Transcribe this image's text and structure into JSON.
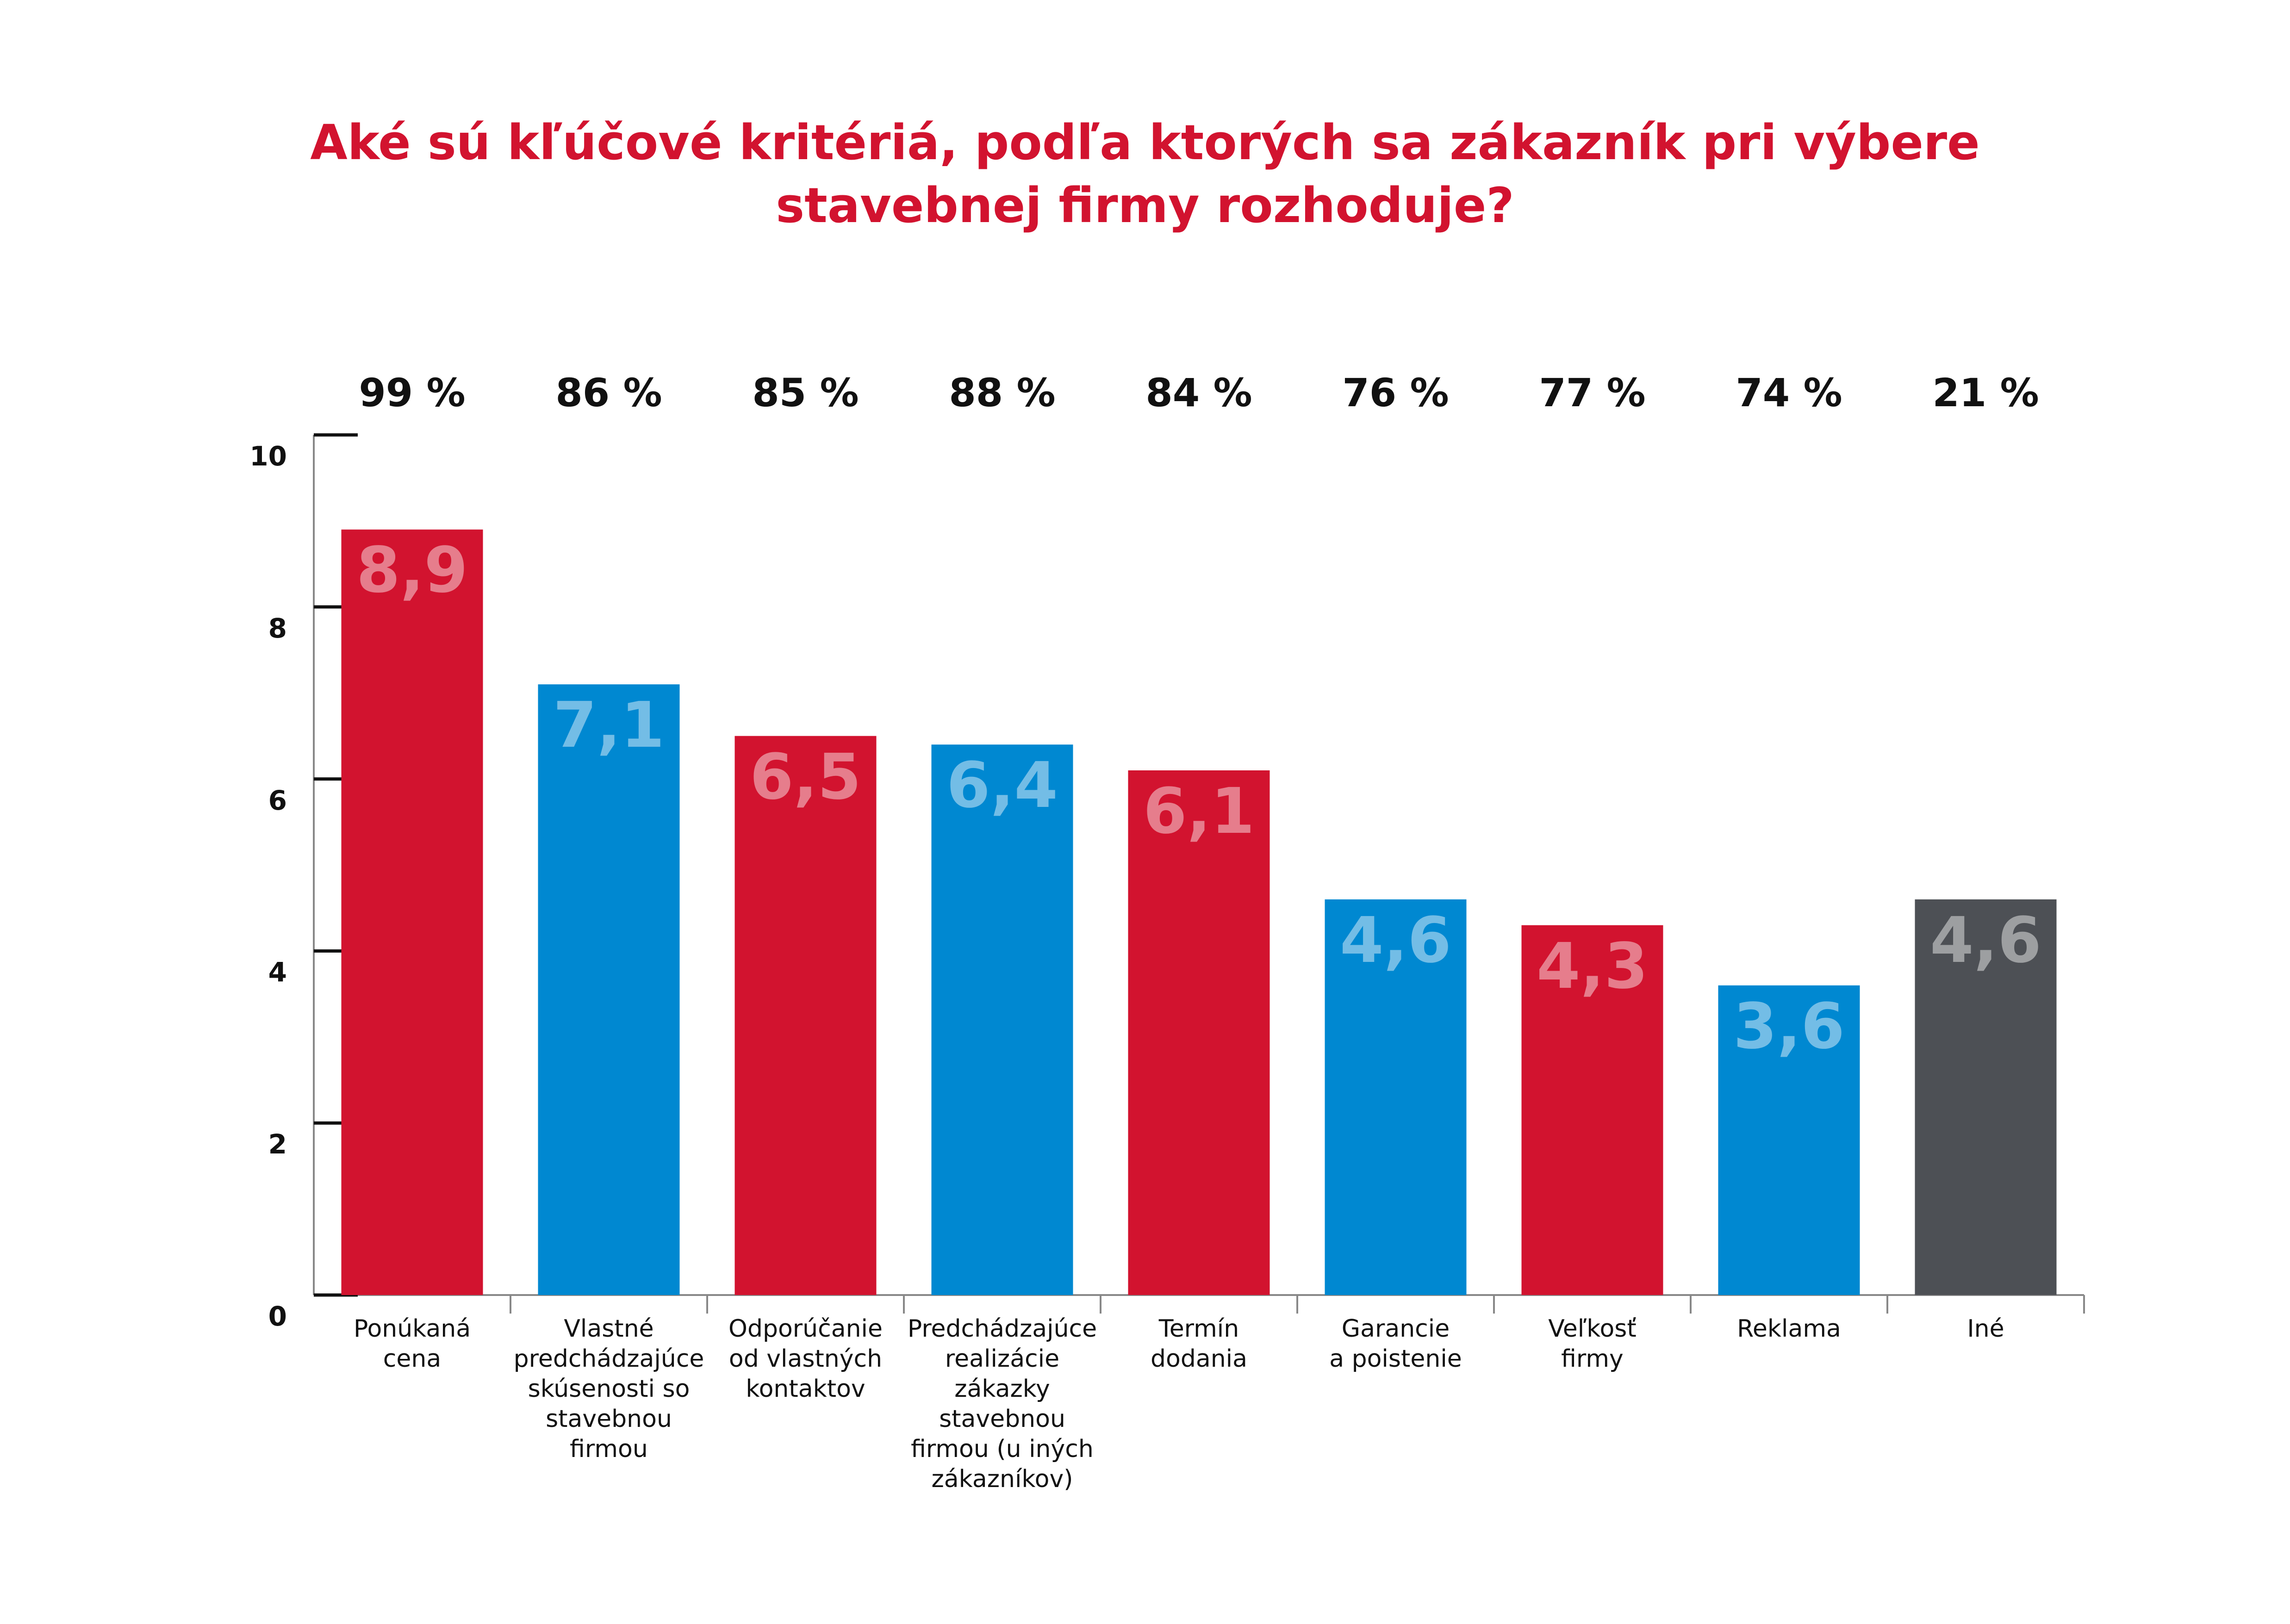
{
  "chart_data": {
    "type": "bar",
    "title": "Aké sú kľúčové kritériá, podľa ktorých sa zákazník pri výbere\nstavebnej firmy rozhoduje?",
    "categories": [
      "Ponúkaná\ncena",
      "Vlastné\npredchádzajúce\nskúsenosti so\nstavebnou\nfirmou",
      "Odporúčanie\nod vlastných\nkontaktov",
      "Predchádzajúce\nrealizácie\nzákazky\nstavebnou\nfirmou (u iných\nzákazníkov)",
      "Termín\ndodania",
      "Garancie\na poistenie",
      "Veľkosť\nfirmy",
      "Reklama",
      "Iné"
    ],
    "values": [
      8.9,
      7.1,
      6.5,
      6.4,
      6.1,
      4.6,
      4.3,
      3.6,
      4.6
    ],
    "value_labels": [
      "8,9",
      "7,1",
      "6,5",
      "6,4",
      "6,1",
      "4,6",
      "4,3",
      "3,6",
      "4,6"
    ],
    "colors": [
      "#d2132f",
      "#0088d1",
      "#d2132f",
      "#0088d1",
      "#d2132f",
      "#0088d1",
      "#d2132f",
      "#0088d1",
      "#4d5055"
    ],
    "annotations": [
      "99 %",
      "86 %",
      "85 %",
      "88 %",
      "84 %",
      "76 %",
      "77 %",
      "74 %",
      "21 %"
    ],
    "ylim": [
      0,
      10
    ],
    "yticks": [
      0,
      2,
      4,
      6,
      8,
      10
    ]
  }
}
